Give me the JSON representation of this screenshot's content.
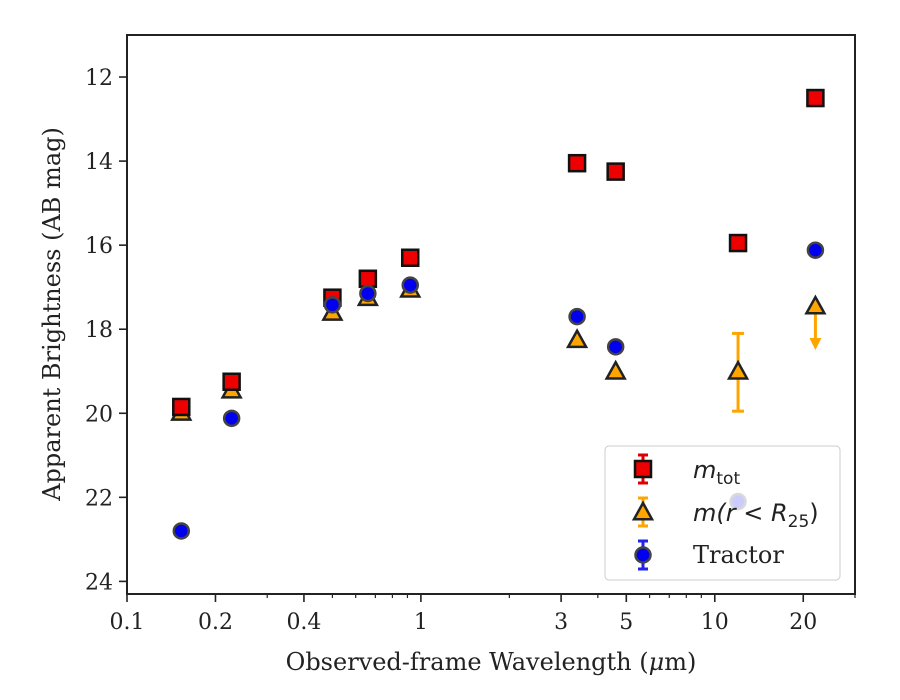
{
  "chart_data": {
    "type": "scatter",
    "xlabel_prefix": "Observed-frame Wavelength (",
    "xlabel_mu": "μ",
    "xlabel_suffix": "m)",
    "ylabel": "Apparent Brightness (AB mag)",
    "x_scale": "log",
    "xlim": [
      0.1,
      30
    ],
    "ylim": [
      24.3,
      11
    ],
    "y_inverted": true,
    "grid": false,
    "legend_position": "lower-right",
    "x_ticks": [
      {
        "value": 0.1,
        "label": "0.1"
      },
      {
        "value": 0.2,
        "label": "0.2"
      },
      {
        "value": 0.4,
        "label": "0.4"
      },
      {
        "value": 1,
        "label": "1"
      },
      {
        "value": 3,
        "label": "3"
      },
      {
        "value": 5,
        "label": "5"
      },
      {
        "value": 10,
        "label": "10"
      },
      {
        "value": 20,
        "label": "20"
      }
    ],
    "y_ticks": [
      {
        "value": 12,
        "label": "12"
      },
      {
        "value": 14,
        "label": "14"
      },
      {
        "value": 16,
        "label": "16"
      },
      {
        "value": 18,
        "label": "18"
      },
      {
        "value": 20,
        "label": "20"
      },
      {
        "value": 22,
        "label": "22"
      },
      {
        "value": 24,
        "label": "24"
      }
    ],
    "series": [
      {
        "name": "m_tot",
        "legend_math": "m",
        "legend_sub": "tot",
        "marker": "square",
        "color": "#ee0000",
        "errorbar_color": "#dd0000",
        "points": [
          {
            "x": 0.153,
            "y": 19.85
          },
          {
            "x": 0.227,
            "y": 19.25
          },
          {
            "x": 0.5,
            "y": 17.25
          },
          {
            "x": 0.66,
            "y": 16.8
          },
          {
            "x": 0.92,
            "y": 16.3
          },
          {
            "x": 3.4,
            "y": 14.05
          },
          {
            "x": 4.6,
            "y": 14.25
          },
          {
            "x": 12.0,
            "y": 15.95
          },
          {
            "x": 22.0,
            "y": 12.5
          }
        ]
      },
      {
        "name": "m(r < R25)",
        "legend_math": "m(r < R",
        "legend_sub": "25",
        "legend_close": ")",
        "marker": "triangle",
        "color": "#ffa500",
        "errorbar_color": "#ffa500",
        "points": [
          {
            "x": 0.153,
            "y": 19.98
          },
          {
            "x": 0.227,
            "y": 19.45
          },
          {
            "x": 0.5,
            "y": 17.6
          },
          {
            "x": 0.66,
            "y": 17.25
          },
          {
            "x": 0.92,
            "y": 17.05
          },
          {
            "x": 3.4,
            "y": 18.25
          },
          {
            "x": 4.6,
            "y": 19.0
          },
          {
            "x": 12.0,
            "y": 19.0,
            "yerr_low": 18.1,
            "yerr_high": 19.95
          },
          {
            "x": 22.0,
            "y": 17.45,
            "upper_limit_to": 18.4
          }
        ]
      },
      {
        "name": "Tractor",
        "marker": "circle",
        "color": "#0000ee",
        "errorbar_color": "#2222ee",
        "points": [
          {
            "x": 0.153,
            "y": 22.8
          },
          {
            "x": 0.227,
            "y": 20.12
          },
          {
            "x": 0.5,
            "y": 17.42
          },
          {
            "x": 0.66,
            "y": 17.15
          },
          {
            "x": 0.92,
            "y": 16.95
          },
          {
            "x": 3.4,
            "y": 17.7
          },
          {
            "x": 4.6,
            "y": 18.42
          },
          {
            "x": 12.0,
            "y": 22.1
          },
          {
            "x": 22.0,
            "y": 16.12
          }
        ]
      }
    ]
  }
}
